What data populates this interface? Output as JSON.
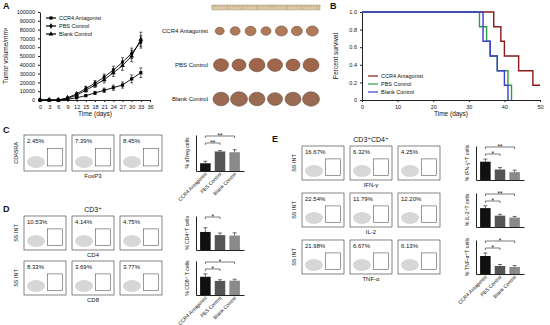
{
  "chart_data": [
    {
      "type": "line",
      "label": "A",
      "x_label": "Time (days)",
      "y_label": "Tumor volume/mm³",
      "x": [
        0,
        3,
        6,
        9,
        12,
        15,
        18,
        21,
        24,
        27,
        30,
        33
      ],
      "xlim": [
        0,
        36
      ],
      "xticks": [
        0,
        3,
        6,
        9,
        12,
        15,
        18,
        21,
        24,
        27,
        30,
        33,
        36
      ],
      "ylim": [
        0,
        100000
      ],
      "yticks": [
        0,
        10000,
        20000,
        30000,
        40000,
        50000,
        60000,
        70000,
        80000,
        90000,
        100000
      ],
      "legend": "upper left",
      "series": [
        {
          "name": "CCR4 Antagonist",
          "color": "#000000",
          "marker": "square",
          "values": [
            0,
            0,
            0,
            800,
            2500,
            5000,
            8000,
            11000,
            14000,
            17000,
            24000,
            31000
          ],
          "errors": [
            0,
            0,
            0,
            300,
            800,
            1200,
            1800,
            2500,
            3000,
            3500,
            4500,
            5500
          ]
        },
        {
          "name": "PBS Control",
          "color": "#000000",
          "marker": "diamond",
          "values": [
            0,
            0,
            0,
            2500,
            7000,
            13000,
            19000,
            26000,
            34000,
            43000,
            53000,
            66000
          ],
          "errors": [
            0,
            0,
            0,
            800,
            1500,
            2500,
            3000,
            3500,
            4500,
            5000,
            6000,
            7000
          ]
        },
        {
          "name": "Blank Control",
          "color": "#000000",
          "marker": "triangle",
          "values": [
            0,
            0,
            0,
            1800,
            5500,
            11000,
            17000,
            23000,
            31000,
            39000,
            50000,
            69000
          ],
          "errors": [
            0,
            0,
            0,
            600,
            1400,
            2200,
            2800,
            3600,
            4200,
            5200,
            6500,
            8000
          ]
        }
      ]
    },
    {
      "type": "image",
      "categories": [
        "CCR4 Antagonist",
        "PBS Control",
        "Blank Control"
      ]
    },
    {
      "type": "line",
      "label": "B",
      "x_label": "Time (days)",
      "y_label": "Percent survival",
      "line_style": "step",
      "xlim": [
        0,
        50
      ],
      "xticks": [
        0,
        10,
        20,
        30,
        40,
        50
      ],
      "ylim": [
        0,
        1
      ],
      "yticks": [
        0,
        0.2,
        0.4,
        0.6,
        0.8,
        {
          "value": 1,
          "label": "1.0"
        }
      ],
      "legend": "lower left",
      "series": [
        {
          "name": "CCR4 Antagonist",
          "color": "#8b1a1a",
          "x": [
            0,
            37,
            39,
            40,
            44,
            48,
            50
          ],
          "values": [
            1,
            0.833,
            0.667,
            0.5,
            0.333,
            0.167,
            0.167
          ]
        },
        {
          "name": "PBS Control",
          "color": "#2e9e3e",
          "x": [
            0,
            33,
            35,
            36,
            38,
            41,
            42
          ],
          "values": [
            1,
            0.833,
            0.667,
            0.5,
            0.333,
            0.167,
            0
          ]
        },
        {
          "name": "Blank Control",
          "color": "#3b3bd6",
          "x": [
            0,
            34,
            36,
            38,
            40,
            41
          ],
          "values": [
            1,
            0.667,
            0.5,
            0.333,
            0.167,
            0
          ]
        }
      ]
    },
    {
      "type": "flow",
      "label": "C",
      "x_label": "FoxP3",
      "y_label": "CD45RA",
      "values": [
        2.45,
        7.39,
        8.45
      ],
      "value_labels": [
        "2.45%",
        "7.39%",
        "8.45%"
      ]
    },
    {
      "type": "bar",
      "y_label": "% aTreg cells",
      "categories": [
        "CCR4 Antagonist",
        "PBS Control",
        "Blank Control"
      ],
      "values": [
        3.0,
        7.6,
        7.3
      ],
      "errors": [
        0.8,
        0.4,
        1.0
      ],
      "colors": [
        "#111111",
        "#555555",
        "#8a8a8a"
      ],
      "ylim": [
        0,
        14
      ],
      "tick_labels": "x",
      "brackets": [
        {
          "between": [
            0,
            2
          ],
          "label": "**"
        },
        {
          "between": [
            0,
            1
          ],
          "label": "**"
        }
      ]
    },
    {
      "type": "flow",
      "label": "D",
      "header": "CD3⁺",
      "x_label": "CD4",
      "y_label": "SS INT",
      "values": [
        10.53,
        4.14,
        4.75
      ],
      "value_labels": [
        "10.53%",
        "4.14%",
        "4.75%"
      ]
    },
    {
      "type": "bar",
      "y_label": "% CD4⁺T cells",
      "categories": [
        null,
        null,
        null
      ],
      "values": [
        8.5,
        7.0,
        6.8
      ],
      "errors": [
        2.0,
        1.0,
        1.3
      ],
      "colors": [
        "#111111",
        "#555555",
        "#8a8a8a"
      ],
      "ylim": [
        0,
        16
      ],
      "tick_labels": false,
      "brackets": [
        {
          "between": [
            0,
            1
          ],
          "label": "*"
        }
      ]
    },
    {
      "type": "flow",
      "x_label": "CD8",
      "y_label": "SS INT",
      "values": [
        8.33,
        3.69,
        3.77
      ],
      "value_labels": [
        "8.33%",
        "3.69%",
        "3.77%"
      ]
    },
    {
      "type": "bar",
      "y_label": "% CD8⁺ T cells",
      "categories": [
        "CCR4 Antagonist",
        "PBS Control",
        "Blank Control"
      ],
      "values": [
        7.5,
        5.8,
        5.9
      ],
      "errors": [
        1.2,
        0.5,
        0.6
      ],
      "colors": [
        "#111111",
        "#555555",
        "#8a8a8a"
      ],
      "ylim": [
        0,
        14
      ],
      "tick_labels": "x",
      "brackets": [
        {
          "between": [
            0,
            2
          ],
          "label": "*"
        },
        {
          "between": [
            0,
            1
          ],
          "label": "*"
        }
      ]
    },
    {
      "type": "flow",
      "label": "E",
      "header": "CD3⁺CD4⁺",
      "x_label": "IFN-γ",
      "y_label": "SS INT",
      "values": [
        16.67,
        6.32,
        4.25
      ],
      "value_labels": [
        "16.67%",
        "6.32%",
        "4.25%"
      ]
    },
    {
      "type": "bar",
      "y_label": "% IFN-γ⁺T cells",
      "categories": [
        null,
        null,
        null
      ],
      "values": [
        14,
        8,
        6
      ],
      "errors": [
        2,
        1.5,
        1.5
      ],
      "colors": [
        "#111111",
        "#555555",
        "#8a8a8a"
      ],
      "ylim": [
        0,
        26
      ],
      "tick_labels": false,
      "brackets": [
        {
          "between": [
            0,
            2
          ],
          "label": "**"
        },
        {
          "between": [
            0,
            1
          ],
          "label": "*"
        }
      ]
    },
    {
      "type": "flow",
      "x_label": "IL-2",
      "y_label": "SS INT",
      "values": [
        22.54,
        11.79,
        12.2
      ],
      "value_labels": [
        "22.54%",
        "11.79%",
        "12.20%"
      ]
    },
    {
      "type": "bar",
      "y_label": "% IL-2⁺T cells",
      "categories": [
        null,
        null,
        null
      ],
      "values": [
        20,
        12,
        10
      ],
      "errors": [
        2.5,
        1.5,
        1.2
      ],
      "colors": [
        "#111111",
        "#555555",
        "#8a8a8a"
      ],
      "ylim": [
        0,
        36
      ],
      "tick_labels": false,
      "brackets": [
        {
          "between": [
            0,
            2
          ],
          "label": "**"
        },
        {
          "between": [
            0,
            1
          ],
          "label": "*"
        }
      ]
    },
    {
      "type": "flow",
      "x_label": "TNF-α",
      "y_label": "SS INT",
      "values": [
        21.98,
        6.67,
        6.13
      ],
      "value_labels": [
        "21.98%",
        "6.67%",
        "6.13%"
      ]
    },
    {
      "type": "bar",
      "y_label": "% TNF-α⁺T cells",
      "categories": [
        "CCR4 Antagonist",
        "PBS Control",
        "Blank Control"
      ],
      "values": [
        18,
        8,
        7
      ],
      "errors": [
        3,
        1.5,
        1.5
      ],
      "colors": [
        "#111111",
        "#555555",
        "#8a8a8a"
      ],
      "ylim": [
        0,
        34
      ],
      "tick_labels": "x",
      "brackets": [
        {
          "between": [
            0,
            2
          ],
          "label": "*"
        },
        {
          "between": [
            0,
            1
          ],
          "label": "*"
        }
      ]
    }
  ]
}
